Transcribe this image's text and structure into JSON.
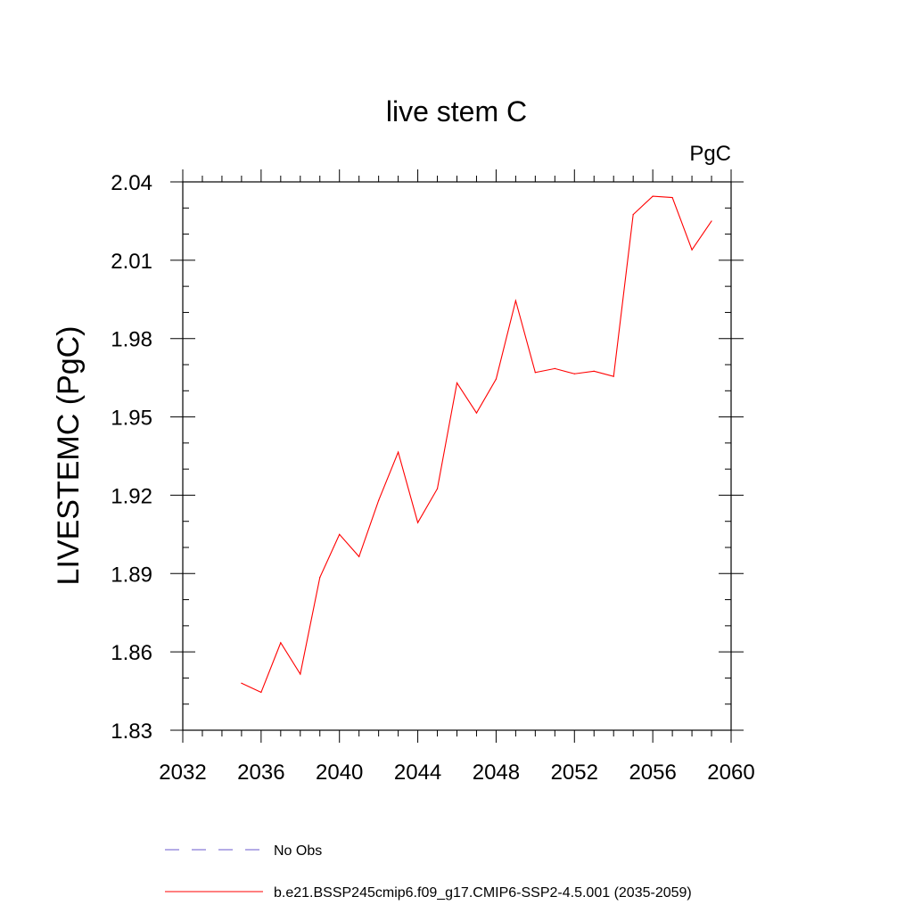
{
  "chart_data": {
    "type": "line",
    "title": "live stem C",
    "units_label": "PgC",
    "ylabel": "LIVESTEMC  (PgC)",
    "xlabel": "",
    "xlim": [
      2032,
      2060
    ],
    "ylim": [
      1.83,
      2.04
    ],
    "xticks": [
      "2032",
      "2036",
      "2040",
      "2044",
      "2048",
      "2052",
      "2056",
      "2060"
    ],
    "yticks": [
      "1.83",
      "1.86",
      "1.89",
      "1.92",
      "1.95",
      "1.98",
      "2.01",
      "2.04"
    ],
    "x": [
      2035,
      2036,
      2037,
      2038,
      2039,
      2040,
      2041,
      2042,
      2043,
      2044,
      2045,
      2046,
      2047,
      2048,
      2049,
      2050,
      2051,
      2052,
      2053,
      2054,
      2055,
      2056,
      2057,
      2058,
      2059
    ],
    "series": [
      {
        "name": "b.e21.BSSP245cmip6.f09_g17.CMIP6-SSP2-4.5.001 (2035-2059)",
        "color": "#ff0000",
        "values": [
          1.848,
          1.8445,
          1.8635,
          1.8515,
          1.8885,
          1.905,
          1.8965,
          1.918,
          1.9365,
          1.9095,
          1.9225,
          1.963,
          1.9515,
          1.9645,
          1.9945,
          1.967,
          1.9685,
          1.9665,
          1.9675,
          1.9655,
          2.0275,
          2.0345,
          2.034,
          2.014,
          2.025
        ]
      }
    ],
    "legend": {
      "placement": "bottom",
      "entries": [
        {
          "label": "No Obs",
          "color": "#6a5acd",
          "style": "dashed"
        },
        {
          "label": "b.e21.BSSP245cmip6.f09_g17.CMIP6-SSP2-4.5.001 (2035-2059)",
          "color": "#ff0000",
          "style": "solid"
        }
      ]
    },
    "grid": false
  }
}
